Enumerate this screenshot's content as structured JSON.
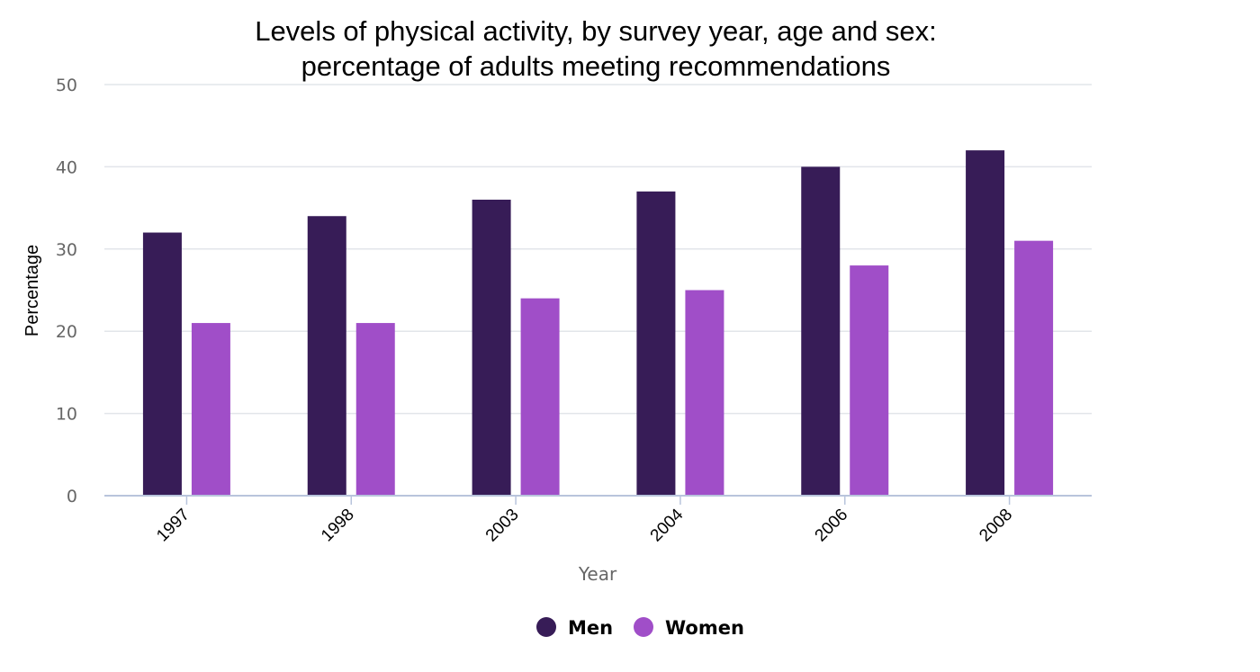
{
  "chart_data": {
    "type": "bar",
    "title": "Levels of physical activity, by survey year, age and sex:",
    "subtitle": "percentage of adults meeting recommendations",
    "xlabel": "Year",
    "ylabel": "Percentage",
    "ylim": [
      0,
      50
    ],
    "yticks": [
      0,
      10,
      20,
      30,
      40,
      50
    ],
    "grid": true,
    "legend_position": "bottom-center",
    "categories": [
      "1997",
      "1998",
      "2003",
      "2004",
      "2006",
      "2008"
    ],
    "series": [
      {
        "name": "Men",
        "color": "#371c57",
        "values": [
          32,
          34,
          36,
          37,
          40,
          42
        ]
      },
      {
        "name": "Women",
        "color": "#a04ec8",
        "values": [
          21,
          21,
          24,
          25,
          28,
          31
        ]
      }
    ]
  }
}
